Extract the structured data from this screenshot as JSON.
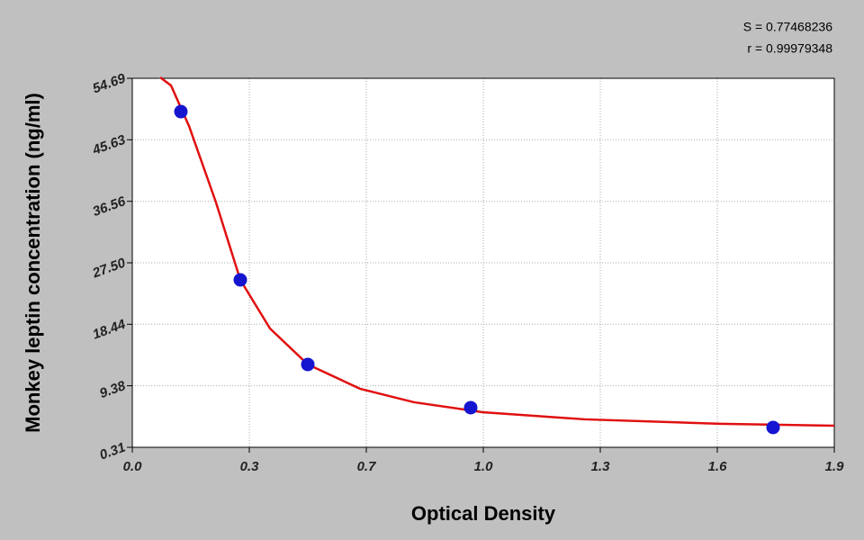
{
  "chart_data": {
    "type": "scatter",
    "x_label": "Optical Density",
    "y_label": "Monkey leptin  concentration (ng/ml)",
    "annotations": [
      "S = 0.77468236",
      "r = 0.99979348"
    ],
    "xlim": [
      0,
      1.95
    ],
    "xticks": [
      {
        "value": 0,
        "label": "0.0"
      },
      {
        "value": 0.325,
        "label": "0.3"
      },
      {
        "value": 0.65,
        "label": "0.7"
      },
      {
        "value": 0.975,
        "label": "1.0"
      },
      {
        "value": 1.3,
        "label": "1.3"
      },
      {
        "value": 1.625,
        "label": "1.6"
      },
      {
        "value": 1.95,
        "label": "1.9"
      }
    ],
    "ylim": [
      0.31,
      54.69
    ],
    "yticks": [
      0.31,
      9.38,
      18.44,
      {
        "value": 27.5,
        "label": "27.50"
      },
      36.56,
      45.63,
      54.69
    ],
    "grid": true,
    "points": {
      "color": "#1515d0",
      "x": [
        0.135,
        0.3,
        0.4875,
        0.94,
        1.78
      ],
      "y": [
        49.78,
        24.98,
        12.52,
        6.15,
        3.23
      ]
    },
    "curve": {
      "color": "#e01010",
      "x": [
        0.0775,
        0.1075,
        0.1575,
        0.2325,
        0.3,
        0.3825,
        0.4875,
        0.6325,
        0.7825,
        0.9725,
        1.2575,
        1.6325,
        1.95
      ],
      "y": [
        54.82,
        53.63,
        47.66,
        36.39,
        24.98,
        17.82,
        12.52,
        8.94,
        6.95,
        5.49,
        4.43,
        3.77,
        3.5
      ]
    }
  }
}
